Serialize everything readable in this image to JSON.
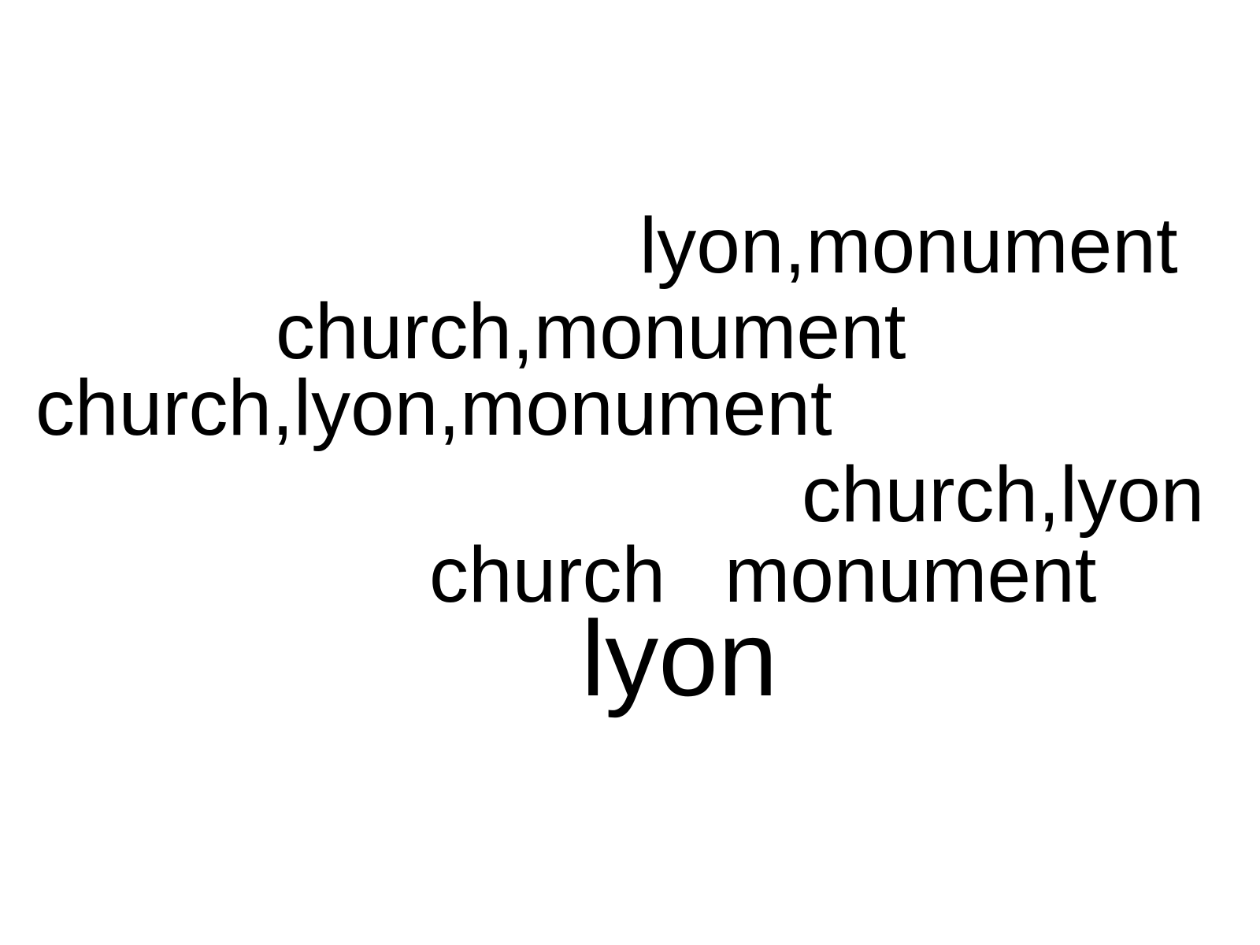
{
  "background_color": "#ffffff",
  "text_color": "#000000",
  "words": [
    {
      "text": "lyon,monument"
    },
    {
      "text": "church,monument"
    },
    {
      "text": "church,lyon,monument"
    },
    {
      "text": "church,lyon"
    },
    {
      "text": "church"
    },
    {
      "text": "monument"
    },
    {
      "text": "lyon"
    }
  ]
}
